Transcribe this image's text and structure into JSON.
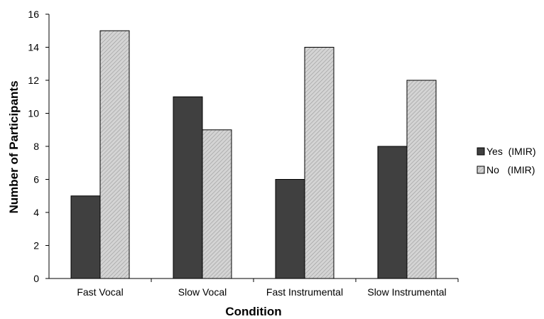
{
  "chart_data": {
    "type": "bar",
    "categories": [
      "Fast Vocal",
      "Slow Vocal",
      "Fast Instrumental",
      "Slow Instrumental"
    ],
    "series": [
      {
        "name": "Yes  (IMIR)",
        "values": [
          5,
          11,
          6,
          8
        ],
        "color": "#404040",
        "pattern": "solid-dark"
      },
      {
        "name": "No   (IMIR)",
        "values": [
          15,
          9,
          14,
          12
        ],
        "color": "#c8c8c8",
        "pattern": "diagonal-hatch"
      }
    ],
    "xlabel": "Condition",
    "ylabel": "Number of Participants",
    "ylim": [
      0,
      16
    ],
    "yticks": [
      0,
      2,
      4,
      6,
      8,
      10,
      12,
      14,
      16
    ],
    "grid": false,
    "legend_position": "right"
  }
}
